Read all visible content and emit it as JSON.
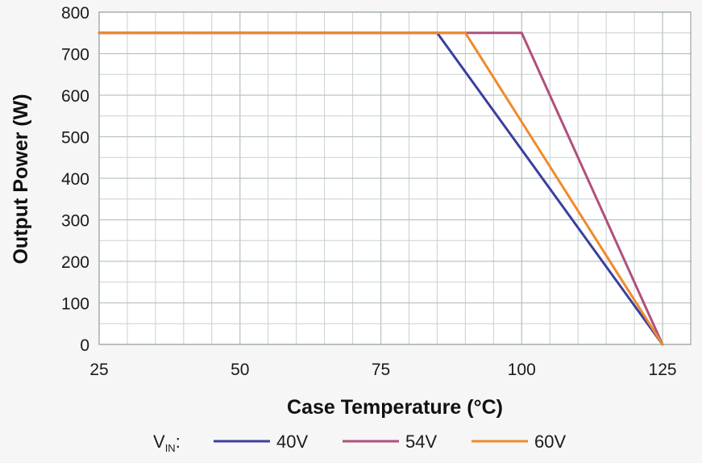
{
  "chart_data": {
    "type": "line",
    "title": "",
    "xlabel": "Case Temperature (°C)",
    "ylabel": "Output Power (W)",
    "xlim": [
      25,
      130
    ],
    "ylim": [
      0,
      800
    ],
    "xticks": [
      25,
      50,
      75,
      100,
      125
    ],
    "yticks": [
      0,
      100,
      200,
      300,
      400,
      500,
      600,
      700,
      800
    ],
    "grid": true,
    "legend": {
      "placement": "bottom",
      "prefix_main": "V",
      "prefix_sub": "IN",
      "prefix_suffix": ":"
    },
    "series": [
      {
        "name": "40V",
        "color": "#3b3f9e",
        "points": [
          [
            25,
            750
          ],
          [
            85,
            750
          ],
          [
            125,
            0
          ]
        ]
      },
      {
        "name": "54V",
        "color": "#b0507c",
        "points": [
          [
            25,
            750
          ],
          [
            100,
            750
          ],
          [
            125,
            0
          ]
        ]
      },
      {
        "name": "60V",
        "color": "#f08a2a",
        "points": [
          [
            25,
            750
          ],
          [
            90,
            750
          ],
          [
            125,
            0
          ]
        ]
      }
    ]
  }
}
